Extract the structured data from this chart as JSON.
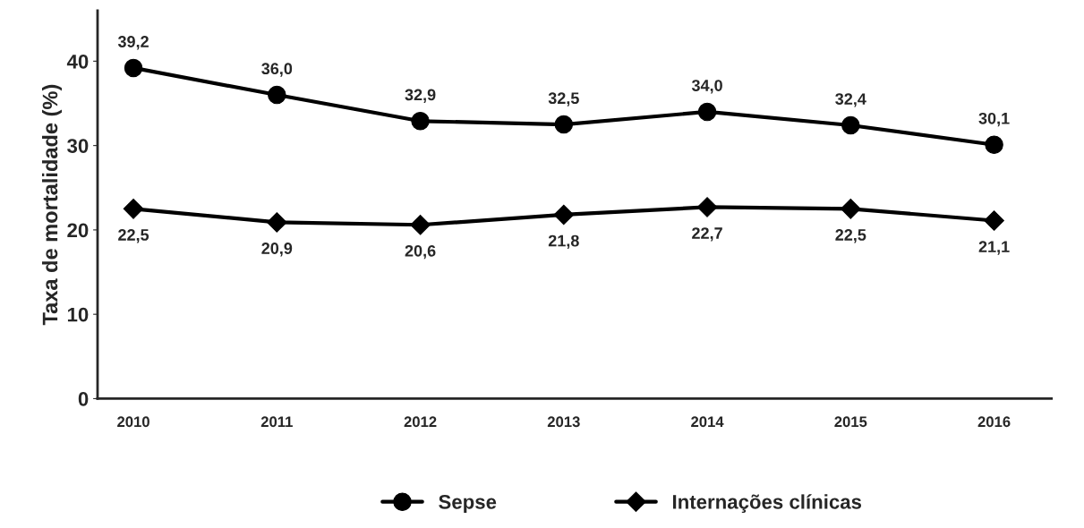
{
  "chart_data": {
    "type": "line",
    "ylabel": "Taxa de mortalidade (%)",
    "categories": [
      "2010",
      "2011",
      "2012",
      "2013",
      "2014",
      "2015",
      "2016"
    ],
    "series": [
      {
        "name": "Sepse",
        "color": "#000000",
        "marker": "circle",
        "values": [
          39.2,
          36.0,
          32.9,
          32.5,
          34.0,
          32.4,
          30.1
        ],
        "value_labels": [
          "39,2",
          "36,0",
          "32,9",
          "32,5",
          "34,0",
          "32,4",
          "30,1"
        ]
      },
      {
        "name": "Internações clínicas",
        "color": "#000000",
        "marker": "diamond",
        "values": [
          22.5,
          20.9,
          20.6,
          21.8,
          22.7,
          22.5,
          21.1
        ],
        "value_labels": [
          "22,5",
          "20,9",
          "20,6",
          "21,8",
          "22,7",
          "22,5",
          "21,1"
        ]
      }
    ],
    "ylim": [
      0,
      46
    ],
    "yticks": [
      0,
      10,
      20,
      30,
      40
    ],
    "grid": false,
    "legend": "bottom",
    "line_style": "solid"
  }
}
